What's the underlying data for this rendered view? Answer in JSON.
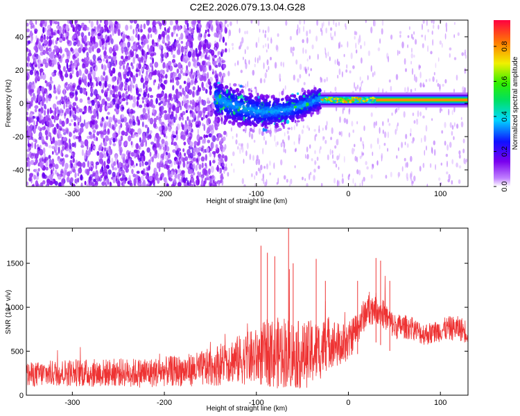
{
  "figure": {
    "title": "C2E2.2026.079.13.04.G28"
  },
  "chart_data": [
    {
      "type": "heatmap",
      "xlabel": "Height of straight line (km)",
      "ylabel": "Frequency (Hz)",
      "xlim": [
        -350,
        130
      ],
      "ylim": [
        -50,
        50
      ],
      "xticks": [
        -300,
        -200,
        -100,
        0,
        100
      ],
      "yticks": [
        -40,
        -20,
        0,
        20,
        40
      ],
      "colorbar": {
        "label": "Normalized spectral amplitude",
        "range": [
          0.0,
          0.95
        ],
        "ticks": [
          "0.0",
          "0.2",
          "0.4",
          "0.6",
          "0.8"
        ],
        "colormap": "rainbow (white-violet-blue-cyan-green-yellow-red)"
      },
      "features": {
        "noise_region_x": [
          -350,
          -145
        ],
        "noise_amplitude": 0.15,
        "scattered_signal_x": [
          -145,
          -30
        ],
        "scattered_signal_freq_center": [
          3,
          -5
        ],
        "scattered_signal_amplitude": 0.25,
        "stable_signal_x": [
          -30,
          130
        ],
        "stable_signal_freq": 2,
        "stable_signal_amplitude": 0.85
      },
      "colors": {
        "violet": "#8800ee",
        "blue": "#2020ff",
        "cyan": "#00e0e0",
        "green": "#20e020",
        "yellow": "#f0f000",
        "red": "#ff1020"
      }
    },
    {
      "type": "line",
      "xlabel": "Height of straight line (km)",
      "ylabel": "SNR (10 * v/v)",
      "xlim": [
        -350,
        130
      ],
      "ylim": [
        0,
        1900
      ],
      "xticks": [
        -300,
        -200,
        -100,
        0,
        100
      ],
      "yticks": [
        0,
        500,
        1000,
        1500
      ],
      "series": [
        {
          "color": "#ee3333",
          "x": [
            -350,
            -320,
            -300,
            -280,
            -250,
            -220,
            -200,
            -180,
            -160,
            -150,
            -140,
            -130,
            -120,
            -110,
            -100,
            -90,
            -80,
            -70,
            -60,
            -50,
            -40,
            -30,
            -20,
            -10,
            0,
            10,
            20,
            30,
            40,
            50,
            60,
            70,
            80,
            90,
            100,
            110,
            120,
            130
          ],
          "values": [
            230,
            250,
            260,
            250,
            260,
            250,
            270,
            280,
            300,
            320,
            350,
            400,
            400,
            420,
            430,
            480,
            470,
            500,
            470,
            450,
            480,
            520,
            620,
            560,
            600,
            780,
            960,
            1000,
            900,
            780,
            780,
            760,
            700,
            700,
            740,
            760,
            760,
            720
          ],
          "spread": [
            140,
            150,
            160,
            160,
            160,
            170,
            170,
            180,
            200,
            220,
            240,
            260,
            280,
            300,
            330,
            380,
            400,
            420,
            400,
            380,
            380,
            340,
            300,
            260,
            220,
            200,
            180,
            180,
            160,
            150,
            140,
            130,
            130,
            130,
            130,
            140,
            140,
            140
          ],
          "spikes": [
            [
              -95,
              1700
            ],
            [
              -88,
              1620
            ],
            [
              -80,
              1580
            ],
            [
              -65,
              1900
            ],
            [
              -60,
              1500
            ],
            [
              -35,
              1550
            ],
            [
              -25,
              1300
            ],
            [
              10,
              1300
            ],
            [
              30,
              1560
            ],
            [
              35,
              1530
            ],
            [
              45,
              1300
            ]
          ]
        }
      ]
    }
  ]
}
